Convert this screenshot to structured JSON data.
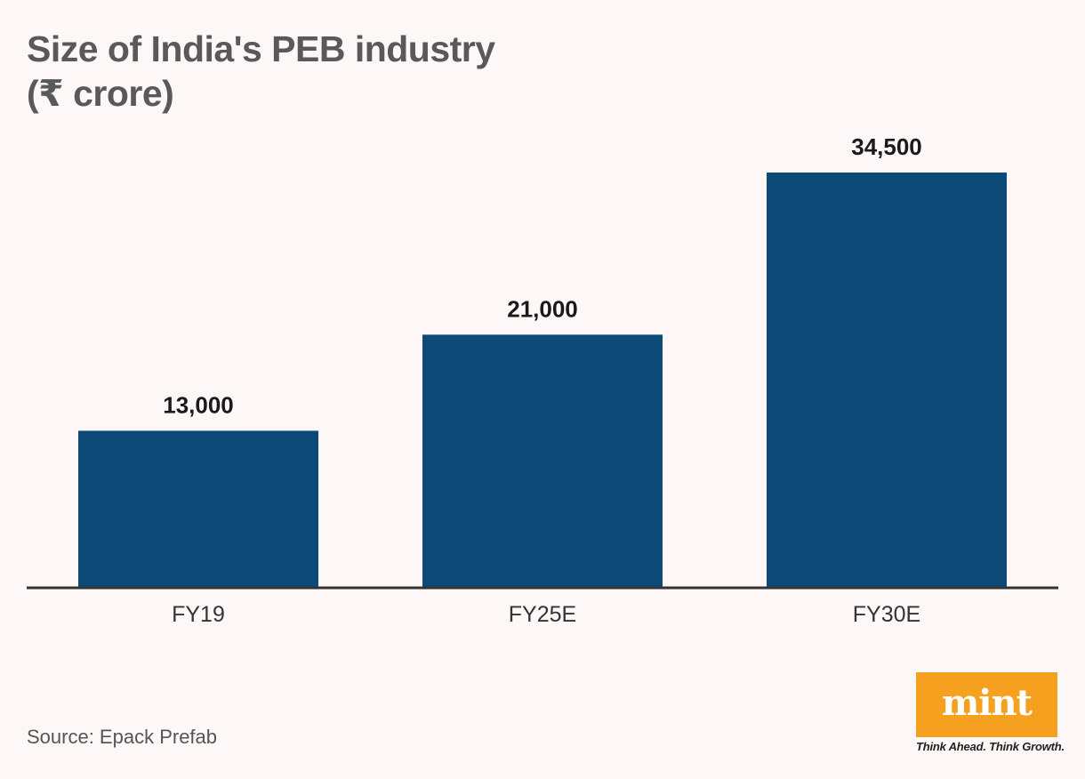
{
  "title_line1": "Size of India's PEB industry",
  "title_line2": "(₹ crore)",
  "source": "Source: Epack Prefab",
  "logo": {
    "wordmark": "mint",
    "tagline": "Think Ahead. Think Growth.",
    "color": "#f5a11f"
  },
  "colors": {
    "bar": "#0e4a78",
    "axis": "#333333",
    "background": "#fdf8f7"
  },
  "chart_data": {
    "type": "bar",
    "categories": [
      "FY19",
      "FY25E",
      "FY30E"
    ],
    "values": [
      13000,
      21000,
      34500
    ],
    "value_labels": [
      "13,000",
      "21,000",
      "34,500"
    ],
    "title": "Size of India's PEB industry (₹ crore)",
    "xlabel": "",
    "ylabel": "",
    "ylim": [
      0,
      34500
    ],
    "grid": false,
    "legend": "none"
  }
}
